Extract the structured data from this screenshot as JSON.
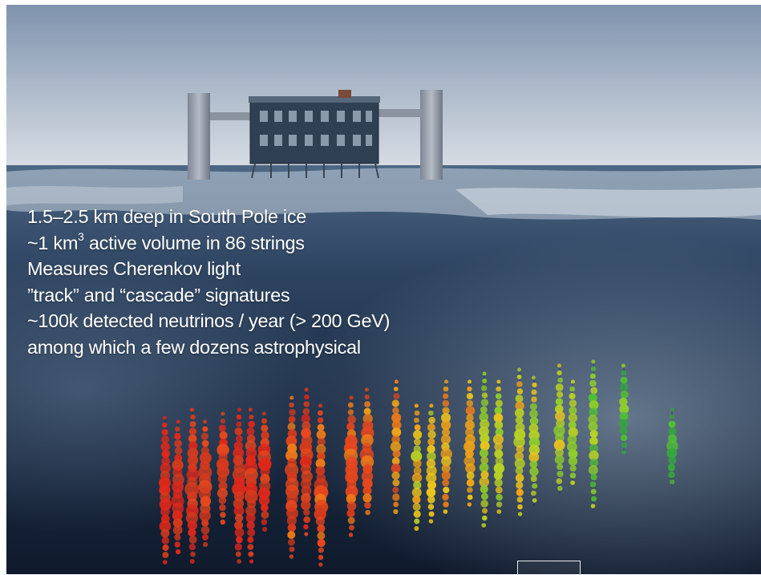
{
  "slide": {
    "lines": [
      {
        "text": "1.5–2.5 km deep in South Pole ice"
      },
      {
        "pre": "~1 km",
        "sup": "3",
        "post": " active volume in 86 strings"
      },
      {
        "text": "Measures Cherenkov light"
      },
      {
        "text": "”track” and “cascade” signatures"
      },
      {
        "text": "~100k detected neutrinos / year (> 200 GeV)"
      },
      {
        "text": "among which a few dozens astrophysical"
      }
    ]
  },
  "photo": {
    "subject": "icecube-laboratory-building",
    "overlay": "neutrino-event-display",
    "colors": {
      "sky_top": "#8fa0b6",
      "sky_horizon": "#d9dde4",
      "ice_dark": "#16263d",
      "ice_mid": "#3d5773",
      "building": "#2f4053"
    }
  },
  "event_display": {
    "string_palette": [
      "#e0281a",
      "#d63a1c",
      "#e8471d",
      "#ef7a17",
      "#f2a316",
      "#e9c31c",
      "#b8d024",
      "#8fce2a",
      "#4fbf33",
      "#36a63c"
    ],
    "string_count": 30
  }
}
